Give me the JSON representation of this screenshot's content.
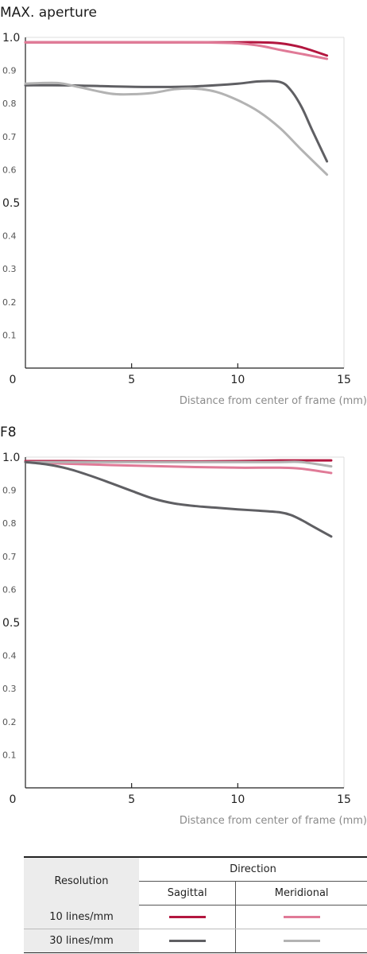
{
  "chart_data": [
    {
      "type": "line",
      "title": "MAX. aperture",
      "xlabel": "Distance from center of frame (mm)",
      "ylabel": "",
      "xlim": [
        0,
        15
      ],
      "ylim": [
        0,
        1.0
      ],
      "xticks": [
        "0",
        "5",
        "10",
        "15"
      ],
      "yticks": [
        "1.0",
        "0.9",
        "0.8",
        "0.7",
        "0.6",
        "0.5",
        "0.4",
        "0.3",
        "0.2",
        "0.1"
      ],
      "grid": true,
      "series": [
        {
          "color": "#b3163f",
          "style": "10 lines/mm Sagittal",
          "x": [
            0,
            2,
            4,
            6,
            8,
            10,
            11,
            12,
            13,
            14.2
          ],
          "y": [
            0.985,
            0.985,
            0.985,
            0.985,
            0.985,
            0.985,
            0.985,
            0.982,
            0.97,
            0.945
          ]
        },
        {
          "color": "#e07a97",
          "style": "10 lines/mm Meridional",
          "x": [
            0,
            2,
            4,
            6,
            8,
            10,
            11,
            12,
            13,
            14.2
          ],
          "y": [
            0.985,
            0.985,
            0.985,
            0.985,
            0.985,
            0.982,
            0.975,
            0.962,
            0.95,
            0.935
          ]
        },
        {
          "color": "#5f5f63",
          "style": "30 lines/mm Sagittal",
          "x": [
            0,
            2,
            4,
            6,
            8,
            10,
            11,
            12,
            12.5,
            13,
            13.5,
            14.2
          ],
          "y": [
            0.855,
            0.855,
            0.852,
            0.85,
            0.852,
            0.86,
            0.867,
            0.865,
            0.84,
            0.79,
            0.72,
            0.625
          ]
        },
        {
          "color": "#b3b3b3",
          "style": "30 lines/mm Meridional",
          "x": [
            0,
            1.5,
            2.5,
            4,
            5,
            6,
            7,
            8,
            9,
            10,
            11,
            12,
            13,
            14.2
          ],
          "y": [
            0.86,
            0.862,
            0.85,
            0.83,
            0.828,
            0.832,
            0.843,
            0.845,
            0.835,
            0.81,
            0.775,
            0.725,
            0.66,
            0.585
          ]
        }
      ]
    },
    {
      "type": "line",
      "title": "F8",
      "xlabel": "Distance from center of frame (mm)",
      "ylabel": "",
      "xlim": [
        0,
        15
      ],
      "ylim": [
        0,
        1.0
      ],
      "xticks": [
        "0",
        "5",
        "10",
        "15"
      ],
      "yticks": [
        "1.0",
        "0.9",
        "0.8",
        "0.7",
        "0.6",
        "0.5",
        "0.4",
        "0.3",
        "0.2",
        "0.1"
      ],
      "grid": true,
      "series": [
        {
          "color": "#b3163f",
          "style": "10 lines/mm Sagittal",
          "x": [
            0,
            2,
            4,
            6,
            8,
            10,
            12,
            14.4
          ],
          "y": [
            0.988,
            0.988,
            0.987,
            0.987,
            0.987,
            0.988,
            0.99,
            0.99
          ]
        },
        {
          "color": "#e07a97",
          "style": "10 lines/mm Meridional",
          "x": [
            0,
            2,
            4,
            6,
            8,
            10,
            12,
            13,
            14.4
          ],
          "y": [
            0.985,
            0.98,
            0.976,
            0.973,
            0.97,
            0.968,
            0.968,
            0.965,
            0.952
          ]
        },
        {
          "color": "#b3b3b3",
          "style": "30 lines/mm Meridional",
          "x": [
            0,
            2,
            4,
            6,
            8,
            10,
            12,
            13,
            14.4
          ],
          "y": [
            0.985,
            0.985,
            0.985,
            0.985,
            0.985,
            0.985,
            0.985,
            0.985,
            0.972
          ]
        },
        {
          "color": "#5f5f63",
          "style": "30 lines/mm Sagittal",
          "x": [
            0,
            1,
            2,
            3,
            4,
            5,
            6,
            7,
            8,
            9,
            10,
            11,
            12,
            12.5,
            13,
            13.5,
            14.4
          ],
          "y": [
            0.985,
            0.978,
            0.965,
            0.945,
            0.922,
            0.898,
            0.875,
            0.86,
            0.852,
            0.847,
            0.842,
            0.838,
            0.833,
            0.825,
            0.81,
            0.792,
            0.76
          ]
        }
      ]
    }
  ],
  "legend": {
    "resolution_header": "Resolution",
    "direction_header": "Direction",
    "sagittal_label": "Sagittal",
    "meridional_label": "Meridional",
    "rows": [
      {
        "label": "10 lines/mm",
        "sagittal_color": "#b3163f",
        "meridional_color": "#e07a97"
      },
      {
        "label": "30 lines/mm",
        "sagittal_color": "#5f5f63",
        "meridional_color": "#b3b3b3"
      }
    ]
  }
}
